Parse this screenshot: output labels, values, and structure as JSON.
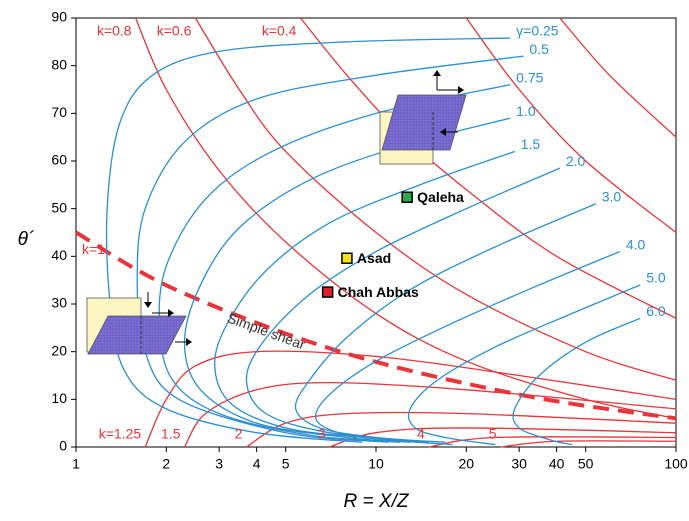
{
  "chart_data": {
    "type": "line",
    "xlabel": "R = X/Z",
    "ylabel": "θ´",
    "xscale": "log",
    "xlim": [
      1,
      100
    ],
    "ylim": [
      0,
      90
    ],
    "xticks": [
      1,
      2,
      3,
      4,
      5,
      10,
      20,
      30,
      40,
      50,
      100
    ],
    "yticks": [
      0,
      10,
      20,
      30,
      40,
      50,
      60,
      70,
      80,
      90
    ],
    "series": [
      {
        "name": "k=0.8",
        "color": "#e8343a",
        "x": [
          1.58,
          2,
          3,
          5,
          10,
          20,
          50,
          100
        ],
        "values": [
          90,
          75,
          58,
          43,
          28,
          18,
          10,
          6
        ]
      },
      {
        "name": "k=0.6",
        "color": "#e8343a",
        "x": [
          2.5,
          3.5,
          5,
          10,
          20,
          50,
          100
        ],
        "values": [
          90,
          75,
          62,
          45,
          32,
          20,
          14
        ]
      },
      {
        "name": "k=0.4",
        "color": "#e8343a",
        "x": [
          5.6,
          8,
          12,
          20,
          40,
          100
        ],
        "values": [
          90,
          78,
          66,
          54,
          40,
          27
        ]
      },
      {
        "name": null,
        "color": "#e8343a",
        "x": [
          20,
          30,
          50,
          100
        ],
        "values": [
          90,
          75,
          60,
          45
        ]
      },
      {
        "name": null,
        "color": "#e8343a",
        "x": [
          41,
          60,
          100
        ],
        "values": [
          90,
          78,
          65
        ]
      },
      {
        "name": "k=1",
        "color": "#e8343a",
        "dash": true,
        "x": [
          1,
          2.15,
          7.6,
          30,
          100
        ],
        "values": [
          45,
          33,
          20,
          11,
          6
        ]
      },
      {
        "name": "k=1.25",
        "color": "#e8343a",
        "x": [
          1.7,
          2,
          2.5,
          4,
          10,
          30,
          100
        ],
        "values": [
          0,
          10,
          17,
          20,
          19,
          15,
          10
        ]
      },
      {
        "name": "1.5",
        "color": "#e8343a",
        "x": [
          2.3,
          2.7,
          4,
          7,
          20,
          100
        ],
        "values": [
          0,
          7,
          12,
          13.5,
          12,
          8
        ]
      },
      {
        "name": "2",
        "color": "#e8343a",
        "x": [
          3.7,
          5,
          8,
          20,
          100
        ],
        "values": [
          0,
          5,
          7,
          7,
          5
        ]
      },
      {
        "name": "3",
        "color": "#e8343a",
        "x": [
          7,
          10,
          20,
          100
        ],
        "values": [
          0,
          3,
          4,
          3
        ]
      },
      {
        "name": "4",
        "color": "#e8343a",
        "x": [
          15,
          25,
          100
        ],
        "values": [
          0,
          2,
          2
        ]
      },
      {
        "name": "5",
        "color": "#e8343a",
        "x": [
          26,
          40,
          100
        ],
        "values": [
          0,
          1.2,
          1.2
        ]
      },
      {
        "name": "γ=0.25",
        "color": "#2b8fd0",
        "x": [
          28,
          8,
          3,
          1.8,
          1.4,
          1.27,
          1.3,
          1.45,
          2,
          4,
          9
        ],
        "values": [
          85.8,
          85,
          83,
          78,
          68,
          50,
          30,
          16,
          8,
          3,
          1
        ]
      },
      {
        "name": "0.5",
        "color": "#2b8fd0",
        "x": [
          31,
          10,
          4,
          2.3,
          1.7,
          1.6,
          1.7,
          2.2,
          5,
          11
        ],
        "values": [
          82,
          78,
          73,
          64,
          50,
          35,
          20,
          10,
          3,
          1
        ]
      },
      {
        "name": "0.75",
        "color": "#2b8fd0",
        "x": [
          28,
          10,
          4.5,
          2.7,
          2,
          1.9,
          2.1,
          3,
          6,
          12
        ],
        "values": [
          76,
          70,
          62,
          52,
          38,
          25,
          14,
          7,
          2.5,
          1
        ]
      },
      {
        "name": "1.0",
        "color": "#2b8fd0",
        "x": [
          28,
          12,
          6,
          3.5,
          2.6,
          2.3,
          2.6,
          4,
          8,
          13
        ],
        "values": [
          69,
          63,
          56,
          46,
          34,
          22,
          12,
          5,
          2,
          1
        ]
      },
      {
        "name": "1.5",
        "color": "#2b8fd0",
        "x": [
          29,
          14,
          7,
          4.3,
          3.2,
          2.9,
          3.3,
          5,
          9,
          14
        ],
        "values": [
          62,
          55,
          47,
          37,
          26,
          17,
          9,
          4,
          2,
          1
        ]
      },
      {
        "name": "2.0",
        "color": "#2b8fd0",
        "x": [
          41,
          20,
          10,
          6,
          4.2,
          3.7,
          4.3,
          7,
          15
        ],
        "values": [
          58.5,
          50,
          41,
          32,
          22,
          14,
          7,
          3,
          1
        ]
      },
      {
        "name": "3.0",
        "color": "#2b8fd0",
        "x": [
          54,
          25,
          13,
          8,
          6,
          5.4,
          6.5,
          10,
          17
        ],
        "values": [
          51,
          42,
          33,
          23,
          14,
          8,
          4,
          2,
          1
        ]
      },
      {
        "name": "4.0",
        "color": "#2b8fd0",
        "x": [
          65,
          35,
          18,
          10,
          7,
          6.3,
          7.5,
          11,
          18
        ],
        "values": [
          41,
          34,
          26,
          18,
          11,
          6,
          3,
          1.5,
          0.5
        ]
      },
      {
        "name": "5.0",
        "color": "#2b8fd0",
        "x": [
          76,
          45,
          25,
          16,
          13,
          13.5,
          17,
          25
        ],
        "values": [
          34,
          28,
          21,
          14,
          8,
          4,
          2,
          0.5
        ]
      },
      {
        "name": "6.0",
        "color": "#2b8fd0",
        "x": [
          76,
          50,
          35,
          29,
          30,
          38,
          45
        ],
        "values": [
          27,
          22,
          15,
          8,
          4,
          1.5,
          0.5
        ]
      }
    ],
    "markers": [
      {
        "label": "Qaleha",
        "color": "#2ca84a",
        "x": 12.7,
        "y": 52.4
      },
      {
        "label": "Asad",
        "color": "#f5e11a",
        "x": 8.0,
        "y": 39.6
      },
      {
        "label": "Chah Abbas",
        "color": "#e0202a",
        "x": 6.9,
        "y": 32.5
      }
    ],
    "annotation": "Simple shear"
  }
}
